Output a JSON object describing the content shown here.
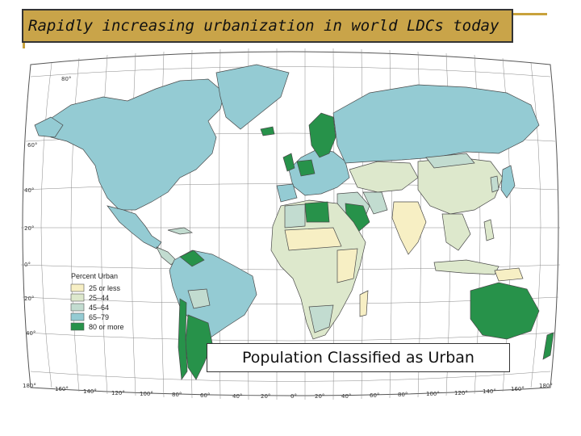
{
  "title": "Rapidly increasing urbanization in world LDCs today",
  "caption": "Population Classified as Urban",
  "legend": {
    "title": "Percent Urban",
    "items": [
      {
        "label": "25 or less",
        "color": "#f7efc4"
      },
      {
        "label": "25–44",
        "color": "#dde8cc"
      },
      {
        "label": "45–64",
        "color": "#c2dcd0"
      },
      {
        "label": "65–79",
        "color": "#94cbd3"
      },
      {
        "label": "80 or more",
        "color": "#27924a"
      }
    ]
  },
  "map": {
    "lat_labels": [
      "80°",
      "60°",
      "40°",
      "20°",
      "0°",
      "20°",
      "40°"
    ],
    "lon_labels": [
      "180°",
      "160°",
      "140°",
      "120°",
      "100°",
      "80°",
      "60°",
      "40°",
      "20°",
      "0°",
      "20°",
      "40°",
      "60°",
      "80°",
      "100°",
      "120°",
      "140°",
      "160°",
      "180°"
    ],
    "colors": {
      "ocean": "#ffffff",
      "border": "#4a4a4a",
      "graticule": "#777777"
    }
  }
}
